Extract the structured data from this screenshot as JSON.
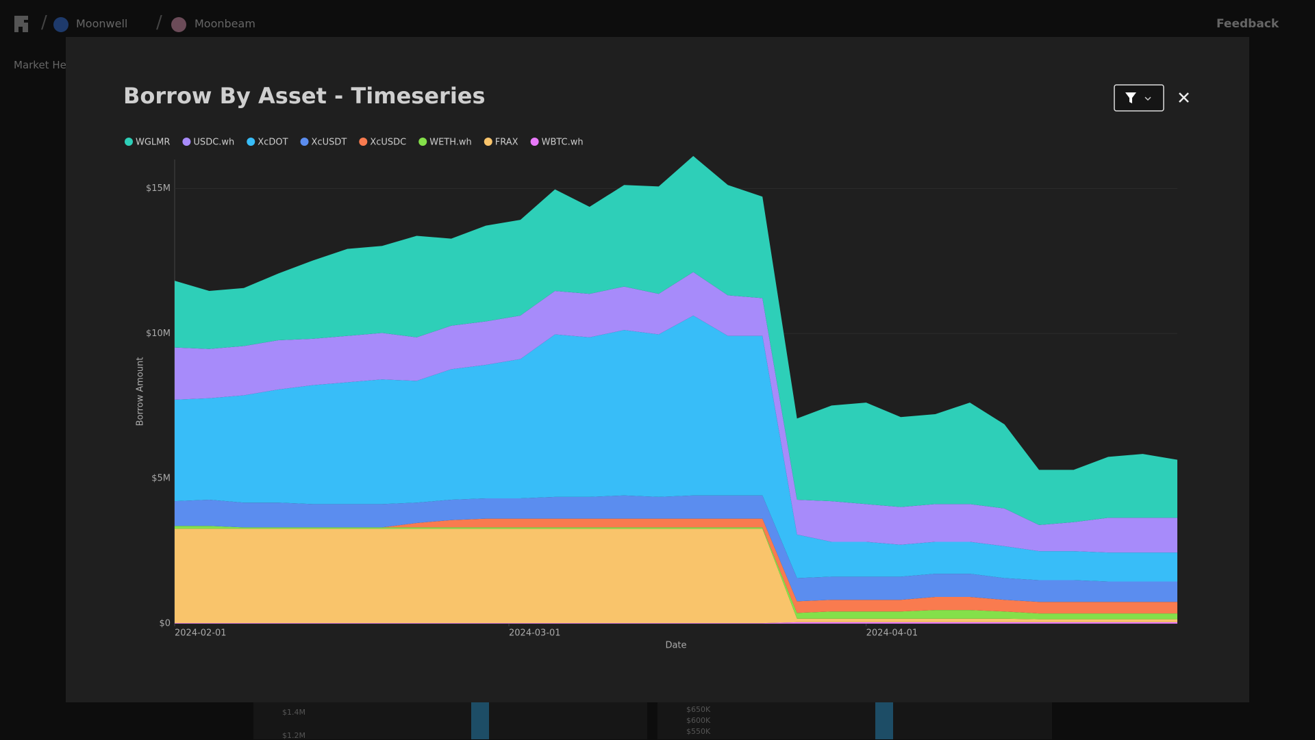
{
  "nav": {
    "org": "Moonwell",
    "network": "Moonbeam",
    "feedback": "Feedback",
    "tab": "Market Hea"
  },
  "background_labels": [
    "$1.4M",
    "$1.2M",
    "$650K",
    "$600K",
    "$550K"
  ],
  "chart_data": {
    "type": "stacked_area",
    "title": "Borrow By Asset - Timeseries",
    "x_label": "Date",
    "y_label": "Borrow Amount",
    "grid": true,
    "legend": "top-left",
    "x": [
      "2024-02-01",
      "2024-02-04",
      "2024-02-07",
      "2024-02-10",
      "2024-02-13",
      "2024-02-16",
      "2024-02-19",
      "2024-02-22",
      "2024-02-25",
      "2024-02-28",
      "2024-03-02",
      "2024-03-05",
      "2024-03-08",
      "2024-03-11",
      "2024-03-14",
      "2024-03-17",
      "2024-03-20",
      "2024-03-23",
      "2024-03-26",
      "2024-03-29",
      "2024-04-01",
      "2024-04-04",
      "2024-04-07",
      "2024-04-10",
      "2024-04-13",
      "2024-04-16",
      "2024-04-19",
      "2024-04-22",
      "2024-04-25",
      "2024-04-28"
    ],
    "xlim": [
      "2024-02-01",
      "2024-04-28"
    ],
    "xticks": [
      "2024-02-01",
      "2024-03-01",
      "2024-04-01"
    ],
    "ylim": [
      0,
      16000000
    ],
    "yticks": [
      {
        "value": 0,
        "label": "$0"
      },
      {
        "value": 5000000,
        "label": "$5M"
      },
      {
        "value": 10000000,
        "label": "$10M"
      },
      {
        "value": 15000000,
        "label": "$15M"
      }
    ],
    "series": [
      {
        "name": "WGLMR",
        "color": "#2ecfb8",
        "values": [
          2300000,
          2000000,
          2000000,
          2300000,
          2700000,
          3000000,
          3000000,
          3500000,
          3000000,
          3300000,
          3300000,
          3500000,
          3000000,
          3500000,
          3700000,
          4000000,
          3800000,
          3500000,
          2800000,
          3300000,
          3500000,
          3100000,
          3100000,
          3500000,
          2900000,
          1900000,
          1800000,
          2100000,
          2200000,
          2000000
        ]
      },
      {
        "name": "USDC.wh",
        "color": "#a78bfa",
        "values": [
          1800000,
          1700000,
          1700000,
          1700000,
          1600000,
          1600000,
          1600000,
          1500000,
          1500000,
          1500000,
          1500000,
          1500000,
          1500000,
          1500000,
          1400000,
          1500000,
          1400000,
          1300000,
          1200000,
          1400000,
          1300000,
          1300000,
          1300000,
          1300000,
          1300000,
          900000,
          1000000,
          1200000,
          1200000,
          1200000
        ]
      },
      {
        "name": "XcDOT",
        "color": "#38bdf8",
        "values": [
          3500000,
          3500000,
          3700000,
          3900000,
          4100000,
          4200000,
          4300000,
          4200000,
          4500000,
          4600000,
          4800000,
          5600000,
          5500000,
          5700000,
          5600000,
          6200000,
          5500000,
          5500000,
          1500000,
          1200000,
          1200000,
          1100000,
          1100000,
          1100000,
          1100000,
          1000000,
          1000000,
          1000000,
          1000000,
          1000000
        ]
      },
      {
        "name": "XcUSDT",
        "color": "#5b8def",
        "values": [
          850000,
          900000,
          850000,
          850000,
          800000,
          800000,
          800000,
          700000,
          700000,
          700000,
          700000,
          750000,
          750000,
          800000,
          750000,
          800000,
          800000,
          800000,
          800000,
          800000,
          800000,
          800000,
          800000,
          800000,
          750000,
          750000,
          750000,
          700000,
          700000,
          700000
        ]
      },
      {
        "name": "XcUSDC",
        "color": "#f97b4f",
        "values": [
          0,
          0,
          0,
          0,
          0,
          0,
          0,
          150000,
          250000,
          300000,
          300000,
          300000,
          300000,
          300000,
          300000,
          300000,
          300000,
          300000,
          400000,
          400000,
          400000,
          400000,
          450000,
          450000,
          400000,
          400000,
          400000,
          400000,
          400000,
          400000
        ]
      },
      {
        "name": "WETH.wh",
        "color": "#84e04a",
        "values": [
          100000,
          100000,
          50000,
          50000,
          50000,
          50000,
          50000,
          50000,
          50000,
          50000,
          50000,
          50000,
          50000,
          50000,
          50000,
          50000,
          50000,
          50000,
          200000,
          250000,
          250000,
          250000,
          300000,
          300000,
          250000,
          200000,
          200000,
          200000,
          200000,
          200000
        ]
      },
      {
        "name": "FRAX",
        "color": "#f9c46b",
        "values": [
          3250000,
          3250000,
          3250000,
          3250000,
          3250000,
          3250000,
          3250000,
          3250000,
          3250000,
          3250000,
          3250000,
          3250000,
          3250000,
          3250000,
          3250000,
          3250000,
          3250000,
          3250000,
          120000,
          120000,
          120000,
          120000,
          120000,
          120000,
          120000,
          100000,
          100000,
          100000,
          100000,
          100000
        ]
      },
      {
        "name": "WBTC.wh",
        "color": "#e879f9",
        "values": [
          20000,
          20000,
          20000,
          20000,
          20000,
          20000,
          20000,
          20000,
          20000,
          20000,
          20000,
          20000,
          20000,
          20000,
          20000,
          20000,
          20000,
          20000,
          50000,
          50000,
          50000,
          50000,
          50000,
          50000,
          50000,
          50000,
          50000,
          50000,
          50000,
          50000
        ]
      }
    ]
  }
}
